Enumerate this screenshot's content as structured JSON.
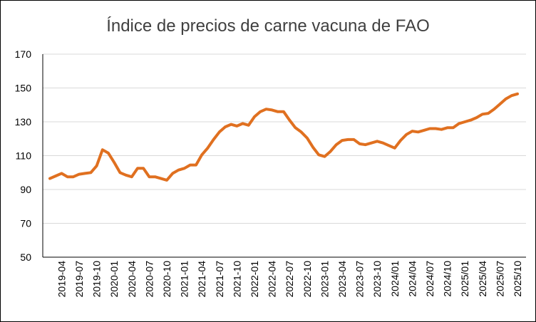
{
  "chart_data": {
    "type": "line",
    "title": "Índice de precios de carne vacuna de FAO",
    "xlabel": "",
    "ylabel": "",
    "ylim": [
      50,
      170
    ],
    "yticks": [
      50,
      70,
      90,
      110,
      130,
      150,
      170
    ],
    "grid": true,
    "legend": "none",
    "line_color": "#E07020",
    "x_tick_labels": [
      "2019-04",
      "2019-07",
      "2019-10",
      "2020-01",
      "2020-04",
      "2020-07",
      "2020-10",
      "2021-01",
      "2021-04",
      "2021-07",
      "2021-10",
      "2022-01",
      "2022-04",
      "2022-07",
      "2022-10",
      "2023-01",
      "2023-04",
      "2023-07",
      "2023-10",
      "2024/01",
      "2024/04",
      "2024/07",
      "2024/10",
      "2025/01",
      "2025/04",
      "2025/07",
      "2025/10"
    ],
    "x": [
      "2019-02",
      "2019-03",
      "2019-04",
      "2019-05",
      "2019-06",
      "2019-07",
      "2019-08",
      "2019-09",
      "2019-10",
      "2019-11",
      "2019-12",
      "2020-01",
      "2020-02",
      "2020-03",
      "2020-04",
      "2020-05",
      "2020-06",
      "2020-07",
      "2020-08",
      "2020-09",
      "2020-10",
      "2020-11",
      "2020-12",
      "2021-01",
      "2021-02",
      "2021-03",
      "2021-04",
      "2021-05",
      "2021-06",
      "2021-07",
      "2021-08",
      "2021-09",
      "2021-10",
      "2021-11",
      "2021-12",
      "2022-01",
      "2022-02",
      "2022-03",
      "2022-04",
      "2022-05",
      "2022-06",
      "2022-07",
      "2022-08",
      "2022-09",
      "2022-10",
      "2022-11",
      "2022-12",
      "2023-01",
      "2023-02",
      "2023-03",
      "2023-04",
      "2023-05",
      "2023-06",
      "2023-07",
      "2023-08",
      "2023-09",
      "2023-10",
      "2023-11",
      "2023-12",
      "2024-01",
      "2024-02",
      "2024-03",
      "2024-04",
      "2024-05",
      "2024-06",
      "2024-07",
      "2024-08",
      "2024-09",
      "2024-10",
      "2024-11",
      "2024-12",
      "2025-01",
      "2025-02",
      "2025-03",
      "2025-04",
      "2025-05",
      "2025-06",
      "2025-07",
      "2025-08",
      "2025-09",
      "2025-10"
    ],
    "values": [
      96.5,
      98,
      99.5,
      97.5,
      97.5,
      99,
      99.5,
      100,
      104,
      113.5,
      111.5,
      106,
      100,
      98.5,
      97.5,
      102.5,
      102.5,
      97.5,
      97.5,
      96.5,
      95.5,
      99.5,
      101.5,
      102.5,
      104.5,
      104.5,
      110.5,
      114.5,
      119.5,
      124,
      127,
      128.5,
      127.5,
      129,
      128,
      133,
      136,
      137.5,
      137,
      136,
      136,
      131,
      126.5,
      124,
      120.5,
      115,
      110.5,
      109.5,
      112.5,
      116.5,
      119,
      119.5,
      119.5,
      117,
      116.5,
      117.5,
      118.5,
      117.5,
      116,
      114.5,
      119,
      122.5,
      124.5,
      124,
      125,
      126,
      126,
      125.5,
      126.5,
      126.5,
      129,
      130,
      131,
      132.5,
      134.5,
      135,
      137.5,
      140.5,
      143.5,
      145.5,
      146.5
    ]
  }
}
